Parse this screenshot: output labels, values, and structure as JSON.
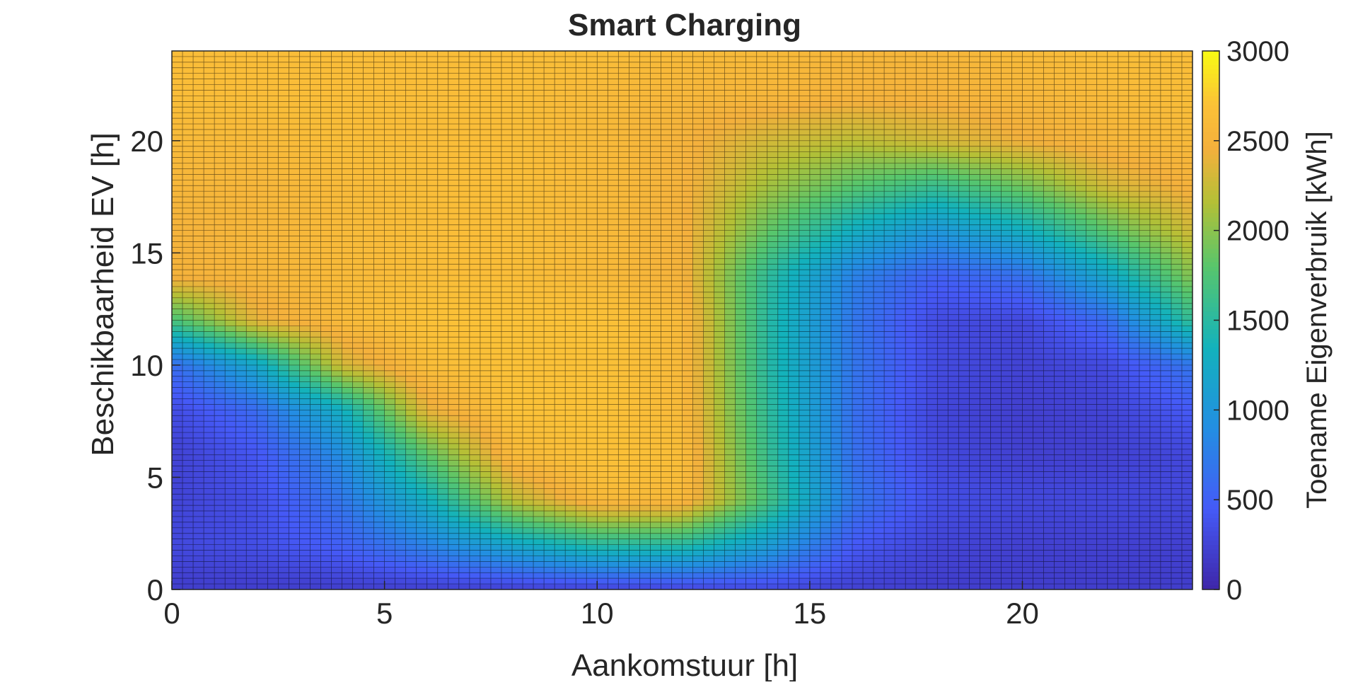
{
  "chart_data": {
    "type": "heatmap",
    "title": "Smart Charging",
    "xlabel": "Aankomstuur [h]",
    "ylabel": "Beschikbaarheid EV [h]",
    "colorbar_label": "Toename Eigenverbruik [kWh]",
    "xlim": [
      0,
      24
    ],
    "ylim": [
      0,
      24
    ],
    "clim": [
      0,
      3000
    ],
    "xticks": [
      0,
      5,
      10,
      15,
      20
    ],
    "yticks": [
      0,
      5,
      10,
      15,
      20
    ],
    "cticks": [
      0,
      500,
      1000,
      1500,
      2000,
      2500,
      3000
    ],
    "colormap": "parula",
    "grid_edges": true,
    "x": [
      0,
      2,
      4,
      6,
      8,
      10,
      12,
      14,
      16,
      18,
      20,
      22,
      24
    ],
    "y": [
      0,
      2,
      4,
      6,
      8,
      10,
      12,
      14,
      16,
      18,
      20,
      22,
      24
    ],
    "z": [
      [
        200,
        200,
        200,
        220,
        230,
        250,
        280,
        300,
        230,
        200,
        200,
        200,
        200
      ],
      [
        300,
        350,
        500,
        800,
        1200,
        1500,
        1500,
        1100,
        450,
        260,
        230,
        230,
        230
      ],
      [
        260,
        360,
        700,
        1300,
        2200,
        2600,
        2600,
        1700,
        700,
        350,
        300,
        300,
        300
      ],
      [
        240,
        420,
        900,
        1800,
        2600,
        2700,
        2650,
        1600,
        650,
        300,
        230,
        230,
        300
      ],
      [
        330,
        600,
        1300,
        2400,
        2700,
        2700,
        2600,
        1550,
        650,
        280,
        220,
        260,
        450
      ],
      [
        600,
        1200,
        2300,
        2650,
        2700,
        2700,
        2600,
        1500,
        700,
        320,
        250,
        320,
        700
      ],
      [
        1700,
        2400,
        2600,
        2700,
        2700,
        2700,
        2600,
        1500,
        700,
        320,
        300,
        600,
        1600
      ],
      [
        2500,
        2550,
        2600,
        2650,
        2650,
        2600,
        2500,
        1550,
        800,
        500,
        650,
        1200,
        2000
      ],
      [
        2500,
        2550,
        2600,
        2650,
        2650,
        2600,
        2500,
        1850,
        1300,
        1000,
        1300,
        1800,
        2300
      ],
      [
        2550,
        2550,
        2600,
        2650,
        2650,
        2600,
        2500,
        2100,
        1800,
        1600,
        1900,
        2300,
        2500
      ],
      [
        2600,
        2600,
        2650,
        2650,
        2650,
        2600,
        2500,
        2300,
        2200,
        2300,
        2450,
        2550,
        2600
      ],
      [
        2650,
        2650,
        2650,
        2650,
        2650,
        2600,
        2550,
        2550,
        2500,
        2500,
        2550,
        2600,
        2650
      ],
      [
        2650,
        2650,
        2650,
        2650,
        2650,
        2650,
        2600,
        2600,
        2550,
        2550,
        2600,
        2650,
        2650
      ]
    ]
  }
}
